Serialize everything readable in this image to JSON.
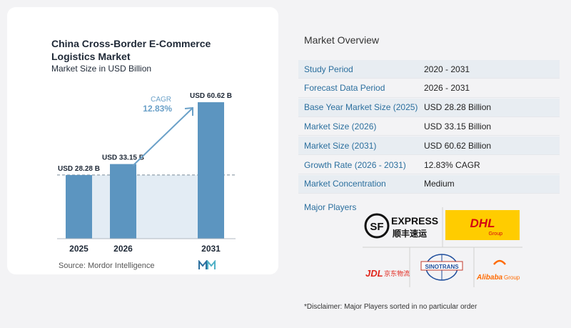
{
  "chart_data": {
    "type": "bar",
    "title": "China Cross-Border E-Commerce Logistics Market",
    "subtitle": "Market Size in USD Billion",
    "categories": [
      "2025",
      "2026",
      "2031"
    ],
    "values": [
      28.28,
      33.15,
      60.62
    ],
    "data_labels": [
      "USD 28.28 B",
      "USD 33.15 B",
      "USD 60.62 B"
    ],
    "ylim": [
      0,
      65
    ],
    "grid": false,
    "cagr_label": "CAGR",
    "cagr_value": "12.83%",
    "bar_color": "#5c95c0",
    "bar_color_light": "#a9c8df"
  },
  "source": "Source:  Mordor Intelligence",
  "overview": {
    "title": "Market Overview",
    "rows": [
      {
        "label": "Study Period",
        "value": "2020 - 2031"
      },
      {
        "label": "Forecast Data Period",
        "value": "2026 - 2031"
      },
      {
        "label": "Base Year Market Size (2025)",
        "value": "USD 28.28 Billion"
      },
      {
        "label": "Market Size (2026)",
        "value": "USD 33.15 Billion"
      },
      {
        "label": "Market Size (2031)",
        "value": "USD 60.62 Billion"
      },
      {
        "label": "Growth Rate (2026 - 2031)",
        "value": "12.83% CAGR"
      },
      {
        "label": "Market Concentration",
        "value": "Medium"
      }
    ],
    "major_players_label": "Major Players",
    "players": [
      {
        "name": "SF Express",
        "logo_text": "EXPRESS",
        "logo_sub": "顺丰速运",
        "icon": "sf-logo"
      },
      {
        "name": "DHL",
        "logo_text": "DHL",
        "logo_sub": "Group",
        "icon": "dhl-logo"
      },
      {
        "name": "JD Logistics",
        "logo_text": "JDL",
        "logo_sub": "京东物流",
        "icon": "jdl-logo"
      },
      {
        "name": "Sinotrans",
        "logo_text": "SINOTRANS",
        "icon": "sinotrans-logo"
      },
      {
        "name": "Alibaba Group",
        "logo_text": "Alibaba",
        "logo_sub": "Group",
        "icon": "alibaba-logo"
      }
    ],
    "disclaimer": "*Disclaimer: Major Players sorted in no particular order"
  }
}
